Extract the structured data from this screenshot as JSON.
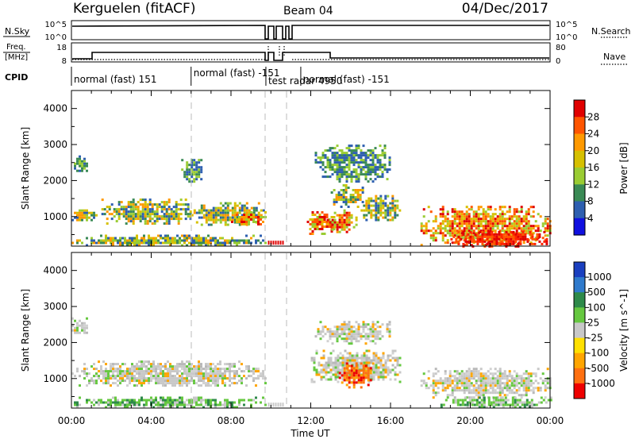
{
  "header": {
    "title": "Kerguelen (fitACF)",
    "beam": "Beam 04",
    "date": "04/Dec/2017"
  },
  "status_panels": {
    "nsky_label": "N.Sky",
    "nsky_top": "10^5",
    "nsky_bottom": "10^0",
    "nsearch_label": "N.Search",
    "nsearch_top": "10^5",
    "nsearch_bottom": "10^0",
    "freq_label_1": "Freq.",
    "freq_label_2": "[MHz]",
    "freq_top": "18",
    "freq_bottom": "8",
    "nave_label": "Nave",
    "nave_top": "80",
    "nave_bottom": "0",
    "cpid_label": "CPID",
    "cpid_segments": [
      {
        "start": 0.0,
        "end": 6.0,
        "label": "normal (fast) 151"
      },
      {
        "start": 6.0,
        "end": 9.75,
        "label": "normal (fast) -151"
      },
      {
        "start": 9.75,
        "end": 11.5,
        "label": "test radar 4950"
      },
      {
        "start": 11.5,
        "end": 24.0,
        "label": "normal (fast) -151"
      }
    ]
  },
  "chart_data": [
    {
      "type": "heatmap",
      "name": "power",
      "ylabel": "Slant Range [km]",
      "x_range_hours": [
        0,
        24
      ],
      "ylim": [
        180,
        4500
      ],
      "yticks": [
        1000,
        2000,
        3000,
        4000
      ],
      "colorbar_label": "Power [dB]",
      "colorbar_ticks": [
        "28",
        "24",
        "20",
        "16",
        "12",
        "8",
        "4"
      ],
      "colorbar_colors": [
        "#e00000",
        "#ff5500",
        "#ff9900",
        "#d6c000",
        "#9acc33",
        "#3a8a55",
        "#2e5fb0",
        "#1010e0"
      ],
      "echo_regions": [
        {
          "t0": 0.0,
          "t1": 0.8,
          "r0": 2200,
          "r1": 2700,
          "level": "low"
        },
        {
          "t0": 0.0,
          "t1": 1.2,
          "r0": 900,
          "r1": 1200,
          "level": "mid"
        },
        {
          "t0": 1.5,
          "t1": 6.0,
          "r0": 800,
          "r1": 1500,
          "level": "mid"
        },
        {
          "t0": 6.0,
          "t1": 9.7,
          "r0": 800,
          "r1": 1400,
          "level": "mid"
        },
        {
          "t0": 8.0,
          "t1": 9.7,
          "r0": 800,
          "r1": 1150,
          "level": "high"
        },
        {
          "t0": 5.5,
          "t1": 6.5,
          "r0": 2000,
          "r1": 2600,
          "level": "low"
        },
        {
          "t0": 0.0,
          "t1": 9.7,
          "r0": 200,
          "r1": 500,
          "level": "mid"
        },
        {
          "t0": 11.8,
          "t1": 13.2,
          "r0": 550,
          "r1": 1150,
          "level": "high"
        },
        {
          "t0": 12.8,
          "t1": 14.3,
          "r0": 600,
          "r1": 1200,
          "level": "high"
        },
        {
          "t0": 13.0,
          "t1": 14.7,
          "r0": 1300,
          "r1": 1900,
          "level": "mid"
        },
        {
          "t0": 14.5,
          "t1": 16.5,
          "r0": 900,
          "r1": 1600,
          "level": "mid"
        },
        {
          "t0": 12.2,
          "t1": 16.0,
          "r0": 2000,
          "r1": 3000,
          "level": "low"
        },
        {
          "t0": 17.5,
          "t1": 24.0,
          "r0": 200,
          "r1": 1300,
          "level": "high"
        },
        {
          "t0": 19.0,
          "t1": 24.0,
          "r0": 200,
          "r1": 600,
          "level": "max"
        }
      ]
    },
    {
      "type": "heatmap",
      "name": "velocity",
      "xlabel": "Time UT",
      "ylabel": "Slant Range [km]",
      "x_range_hours": [
        0,
        24
      ],
      "xticks": [
        "00:00",
        "04:00",
        "08:00",
        "12:00",
        "16:00",
        "20:00",
        "00:00"
      ],
      "ylim": [
        180,
        4500
      ],
      "yticks": [
        1000,
        2000,
        3000,
        4000
      ],
      "colorbar_label": "Velocity [m s^-1]",
      "colorbar_ticks": [
        "1000",
        "500",
        "100",
        "25",
        "-25",
        "-100",
        "-500",
        "-1000"
      ],
      "colorbar_colors": [
        "#1a3fbf",
        "#2f7acc",
        "#2e8a4a",
        "#66c840",
        "#c8c8c8",
        "#ffe000",
        "#ffa500",
        "#ff7010",
        "#ee0000"
      ],
      "echo_regions": [
        {
          "t0": 0.0,
          "t1": 9.7,
          "r0": 800,
          "r1": 1500,
          "level": "ground"
        },
        {
          "t0": 0.0,
          "t1": 9.7,
          "r0": 200,
          "r1": 500,
          "level": "pos"
        },
        {
          "t0": 0.0,
          "t1": 0.8,
          "r0": 2200,
          "r1": 2700,
          "level": "ground"
        },
        {
          "t0": 12.2,
          "t1": 16.0,
          "r0": 2000,
          "r1": 2600,
          "level": "ground"
        },
        {
          "t0": 12.0,
          "t1": 16.5,
          "r0": 900,
          "r1": 1800,
          "level": "ground"
        },
        {
          "t0": 13.4,
          "t1": 15.2,
          "r0": 780,
          "r1": 1450,
          "level": "neg"
        },
        {
          "t0": 17.5,
          "t1": 24.0,
          "r0": 500,
          "r1": 1300,
          "level": "ground"
        },
        {
          "t0": 18.5,
          "t1": 24.0,
          "r0": 200,
          "r1": 500,
          "level": "pos"
        }
      ]
    }
  ]
}
